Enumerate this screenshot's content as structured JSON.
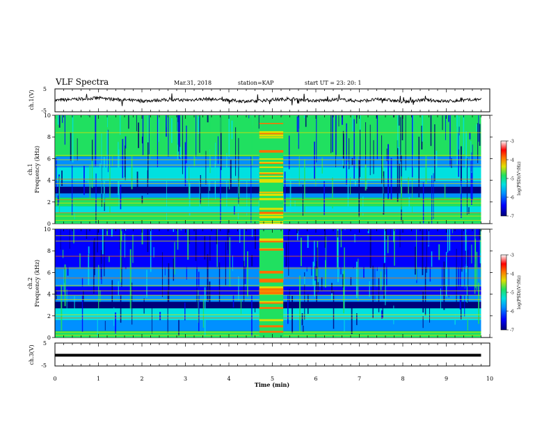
{
  "header": {
    "title": "VLF Spectra",
    "date": "Mar.31, 2018",
    "station": "station=KAP",
    "start": "start  UT  =   23: 20: 1"
  },
  "panels": {
    "ch1_wave": {
      "ylabel": "ch.1(V)",
      "ticks": [
        "5",
        "-5"
      ]
    },
    "ch1_spec": {
      "ylabel_a": "ch.1",
      "ylabel_b": "Frequency (kHz)"
    },
    "ch2_spec": {
      "ylabel_a": "ch.2",
      "ylabel_b": "Frequency (kHz)"
    },
    "ch3_wave": {
      "ylabel": "ch.3(V)",
      "ticks": [
        "5",
        "-5"
      ]
    }
  },
  "colorbar": {
    "label": "log(PSD)(V²/Hz)",
    "ticks": [
      "-3",
      "-4",
      "-5",
      "-6",
      "-7"
    ],
    "colors": [
      "#00007a",
      "#0000ff",
      "#0090ff",
      "#00e0e0",
      "#20e060",
      "#e0e000",
      "#ff7000",
      "#ff0000",
      "#ffffff"
    ]
  },
  "xaxis": {
    "label": "Time  (min)"
  },
  "chart_data": [
    {
      "type": "line",
      "name": "ch.1 waveform",
      "ylabel": "ch.1(V)",
      "ylim": [
        -5,
        5
      ],
      "xlim": [
        0,
        10
      ],
      "x": [
        0,
        0.5,
        1,
        1.5,
        2,
        2.5,
        3,
        3.5,
        4,
        4.5,
        5,
        5.5,
        6,
        6.5,
        7,
        7.5,
        8,
        8.5,
        9,
        9.5,
        9.8
      ],
      "y": [
        0,
        0.5,
        1,
        0.3,
        -0.3,
        0.2,
        0.1,
        0.6,
        0,
        -0.5,
        0.3,
        0.6,
        -0.2,
        0.4,
        -0.3,
        0.5,
        -0.6,
        0.2,
        -0.4,
        0.1,
        0.5
      ]
    },
    {
      "type": "heatmap",
      "name": "ch.1 spectrogram",
      "xlim": [
        0,
        10
      ],
      "ylim": [
        0,
        10
      ],
      "yticks": [
        0,
        2,
        4,
        6,
        8,
        10
      ],
      "zlim": [
        -7,
        -3
      ],
      "zlabel": "log(PSD)(V²/Hz)",
      "event_interval_min": [
        4.7,
        5.25
      ]
    },
    {
      "type": "heatmap",
      "name": "ch.2 spectrogram",
      "xlim": [
        0,
        10
      ],
      "ylim": [
        0,
        10
      ],
      "yticks": [
        0,
        2,
        4,
        6,
        8,
        10
      ],
      "zlim": [
        -7,
        -3
      ],
      "zlabel": "log(PSD)(V²/Hz)",
      "event_interval_min": [
        4.7,
        5.25
      ]
    },
    {
      "type": "line",
      "name": "ch.3 waveform",
      "ylabel": "ch.3(V)",
      "ylim": [
        -5,
        5
      ],
      "xlim": [
        0,
        10
      ],
      "x": [
        0,
        9.8
      ],
      "y": [
        0,
        0
      ]
    }
  ],
  "xticks": [
    "0",
    "1",
    "2",
    "3",
    "4",
    "5",
    "6",
    "7",
    "8",
    "9",
    "10"
  ]
}
